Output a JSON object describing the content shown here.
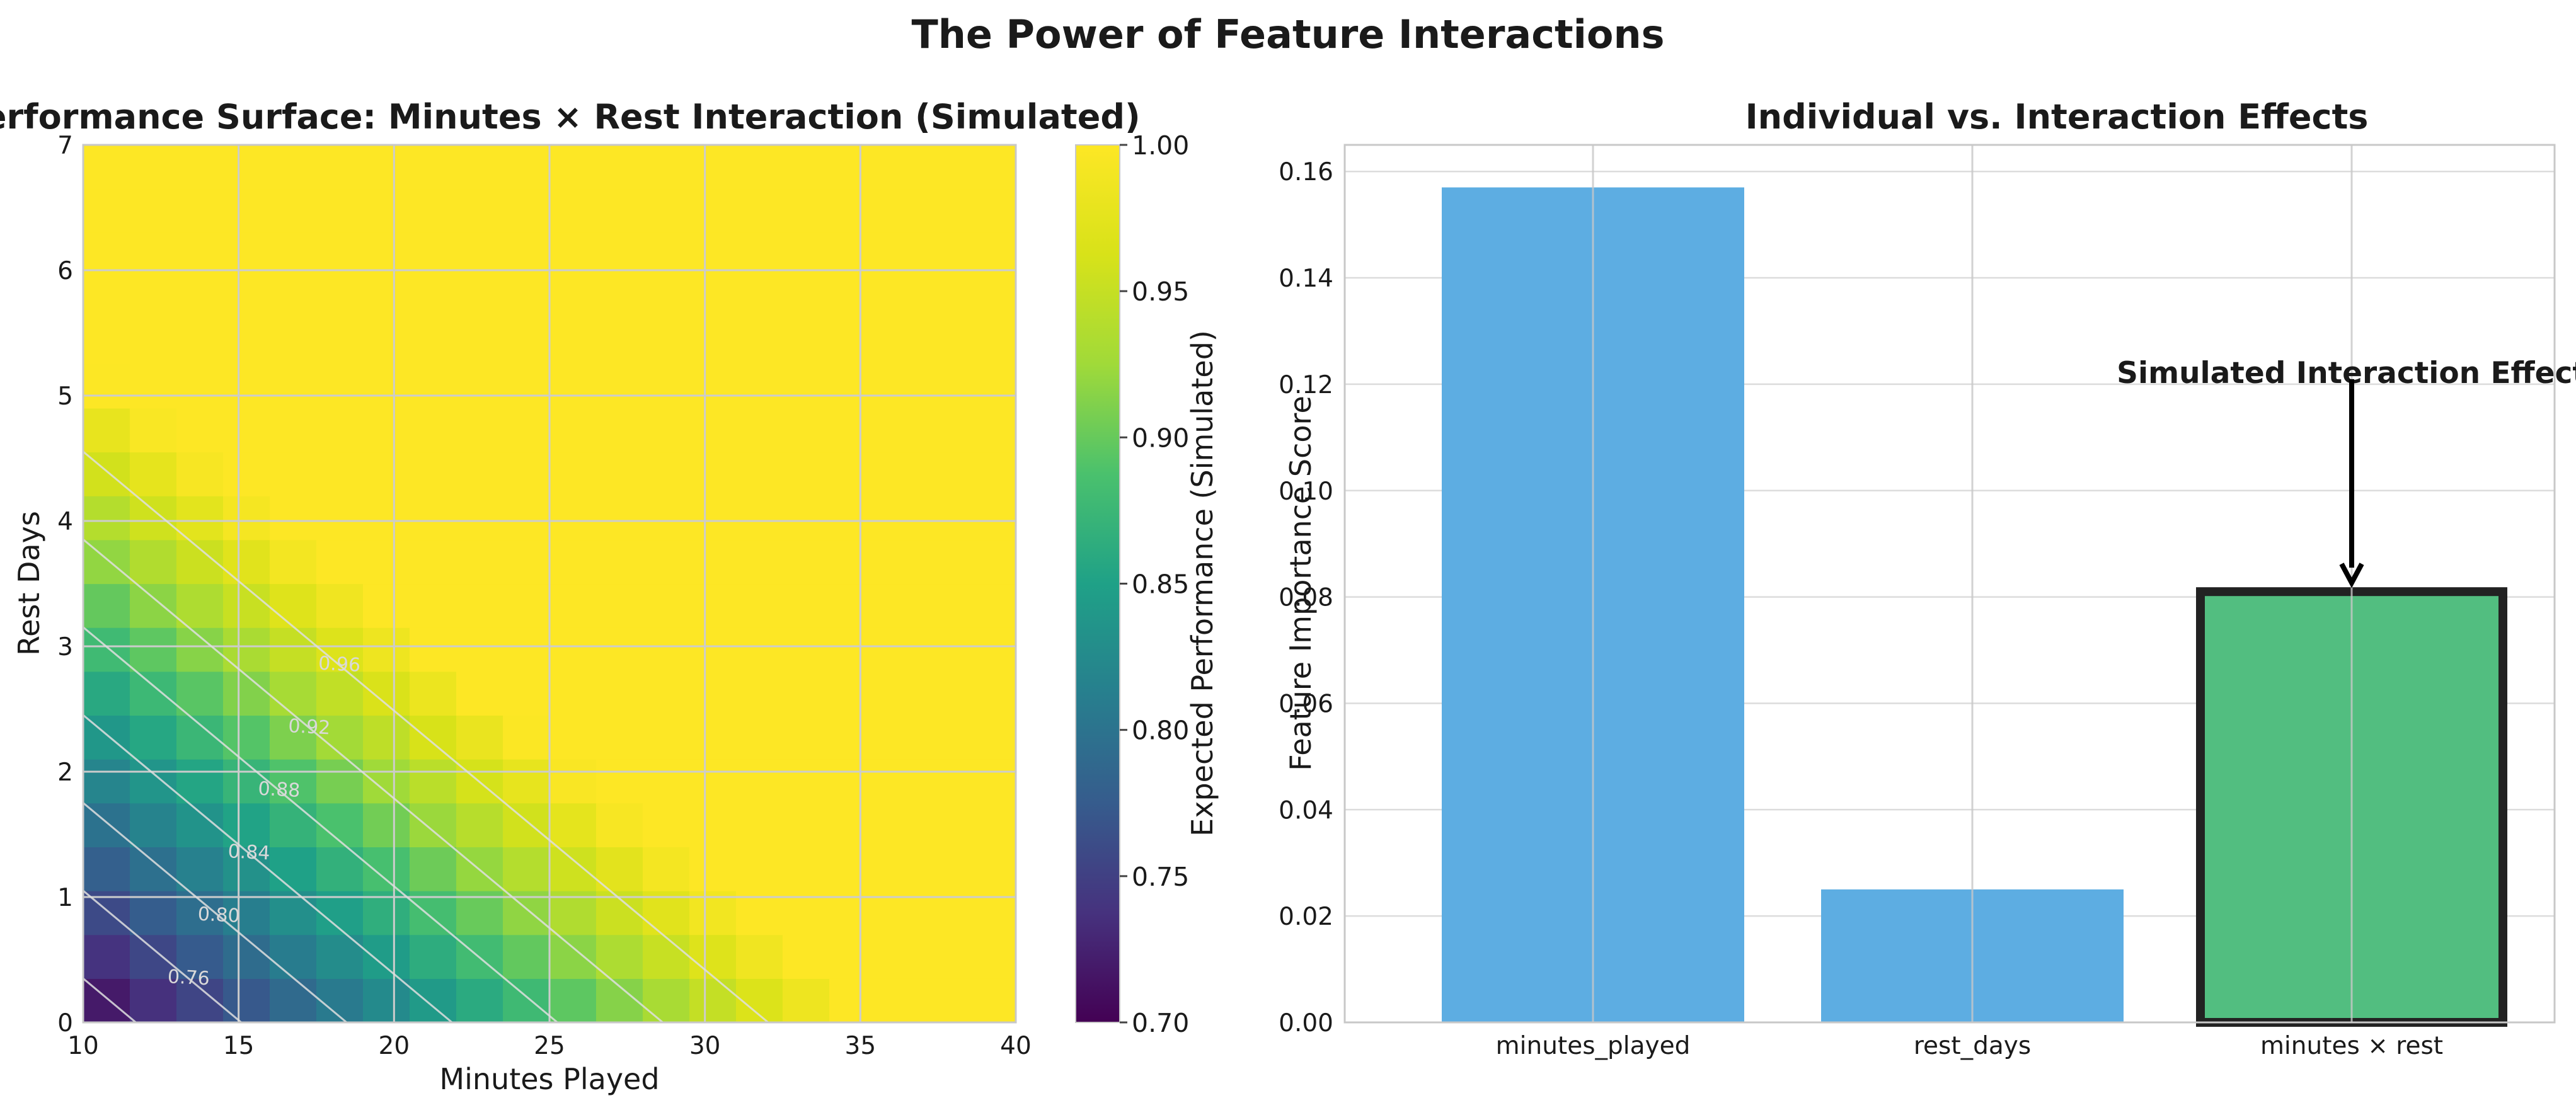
{
  "figure": {
    "title": "The Power of Feature Interactions"
  },
  "chart_data": [
    {
      "type": "heatmap",
      "title": "Performance Surface: Minutes × Rest Interaction (Simulated)",
      "xlabel": "Minutes Played",
      "ylabel": "Rest Days",
      "xlim": [
        10,
        40
      ],
      "ylim": [
        0,
        7
      ],
      "xticks": [
        10,
        15,
        20,
        25,
        30,
        35,
        40
      ],
      "yticks": [
        0,
        1,
        2,
        3,
        4,
        5,
        6,
        7
      ],
      "grid": true,
      "colormap": "viridis",
      "value_model": "clip(0.70 + 0.0118*(minutes-10) + 0.0571*rest, max 1.0)",
      "colorbar": {
        "label": "Expected Performance (Simulated)",
        "range": [
          0.7,
          1.0
        ],
        "ticks": [
          "0.70",
          "0.75",
          "0.80",
          "0.85",
          "0.90",
          "0.95",
          "1.00"
        ]
      },
      "contour_labels": [
        "0.76",
        "0.80",
        "0.84",
        "0.88",
        "0.92",
        "0.96"
      ],
      "contour_levels": [
        0.72,
        0.76,
        0.8,
        0.84,
        0.88,
        0.92,
        0.96
      ]
    },
    {
      "type": "bar",
      "title": "Individual vs. Interaction Effects",
      "xlabel": "",
      "ylabel": "Feature Importance Score",
      "categories": [
        "minutes_played",
        "rest_days",
        "minutes × rest"
      ],
      "values": [
        0.157,
        0.025,
        0.081
      ],
      "colors": [
        "#5dade2",
        "#5dade2",
        "#52be80"
      ],
      "highlight_index": 2,
      "ylim": [
        0,
        0.165
      ],
      "yticks": [
        "0.00",
        "0.02",
        "0.04",
        "0.06",
        "0.08",
        "0.10",
        "0.12",
        "0.14",
        "0.16"
      ],
      "grid": true,
      "annotation": {
        "text": "Simulated Interaction Effect",
        "target_index": 2,
        "text_y": 0.12
      }
    }
  ]
}
